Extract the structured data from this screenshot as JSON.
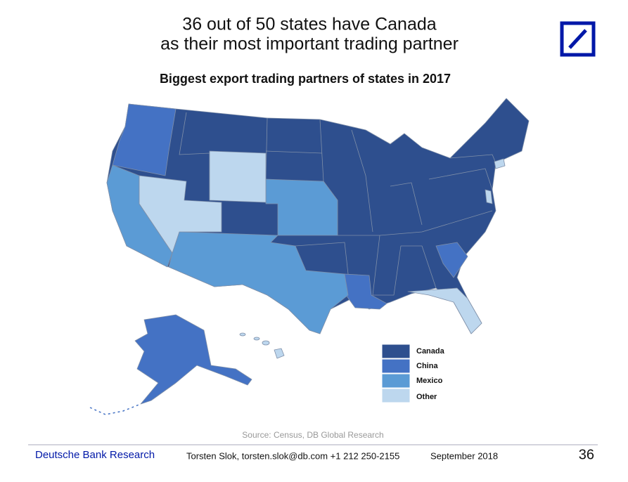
{
  "header": {
    "title_lines": [
      "36 out of 50 states have Canada",
      "as their most important trading partner"
    ]
  },
  "map": {
    "title": "Biggest export trading partners of states in 2017",
    "legend": [
      {
        "label": "Canada",
        "color": "#2e4f8e"
      },
      {
        "label": "China",
        "color": "#4472c4"
      },
      {
        "label": "Mexico",
        "color": "#5b9bd5"
      },
      {
        "label": "Other",
        "color": "#bdd7ee"
      }
    ],
    "source": "Source: Census, DB Global Research"
  },
  "footer": {
    "brand": "Deutsche Bank Research",
    "author": "Torsten Slok, torsten.slok@db.com  +1 212 250-2155",
    "date": "September 2018",
    "page": "36"
  }
}
